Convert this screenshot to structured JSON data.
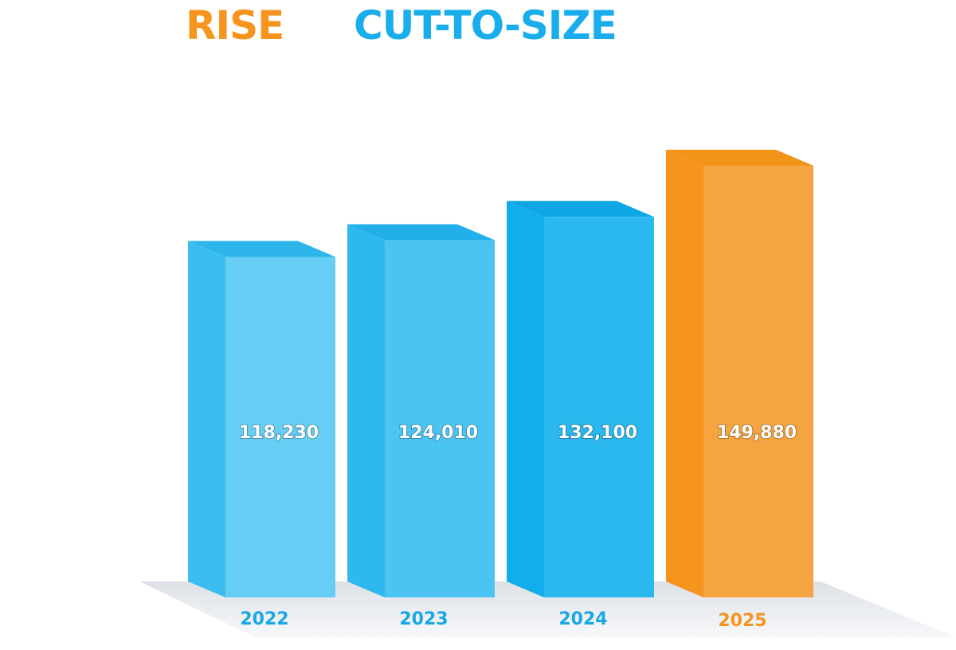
{
  "title": {
    "part1": "RISE",
    "part2": "CUT-TO-SIZE",
    "part1_color": "#F7941D",
    "part2_color": "#1AADEC"
  },
  "chart_data": {
    "type": "bar",
    "style": "3d",
    "categories": [
      "2022",
      "2023",
      "2024",
      "2025"
    ],
    "values": [
      118230,
      124010,
      132100,
      149880
    ],
    "value_labels": [
      "118,230",
      "124,010",
      "132,100",
      "149,880"
    ],
    "ylim": [
      0,
      160000
    ],
    "grid": false,
    "legend": "none",
    "bar_colors": [
      {
        "front": "#66CDF4",
        "side": "#3CBDF0",
        "top": "#2EB5EC",
        "label": "#1AA7E6"
      },
      {
        "front": "#4BC4F2",
        "side": "#2FB8EE",
        "top": "#22AFEA",
        "label": "#1AA7E6"
      },
      {
        "front": "#2AB8EF",
        "side": "#12ADEB",
        "top": "#0FA6E6",
        "label": "#1AA7E6"
      },
      {
        "front": "#F5A442",
        "side": "#F7941D",
        "top": "#F29318",
        "label": "#F7941D"
      }
    ]
  }
}
